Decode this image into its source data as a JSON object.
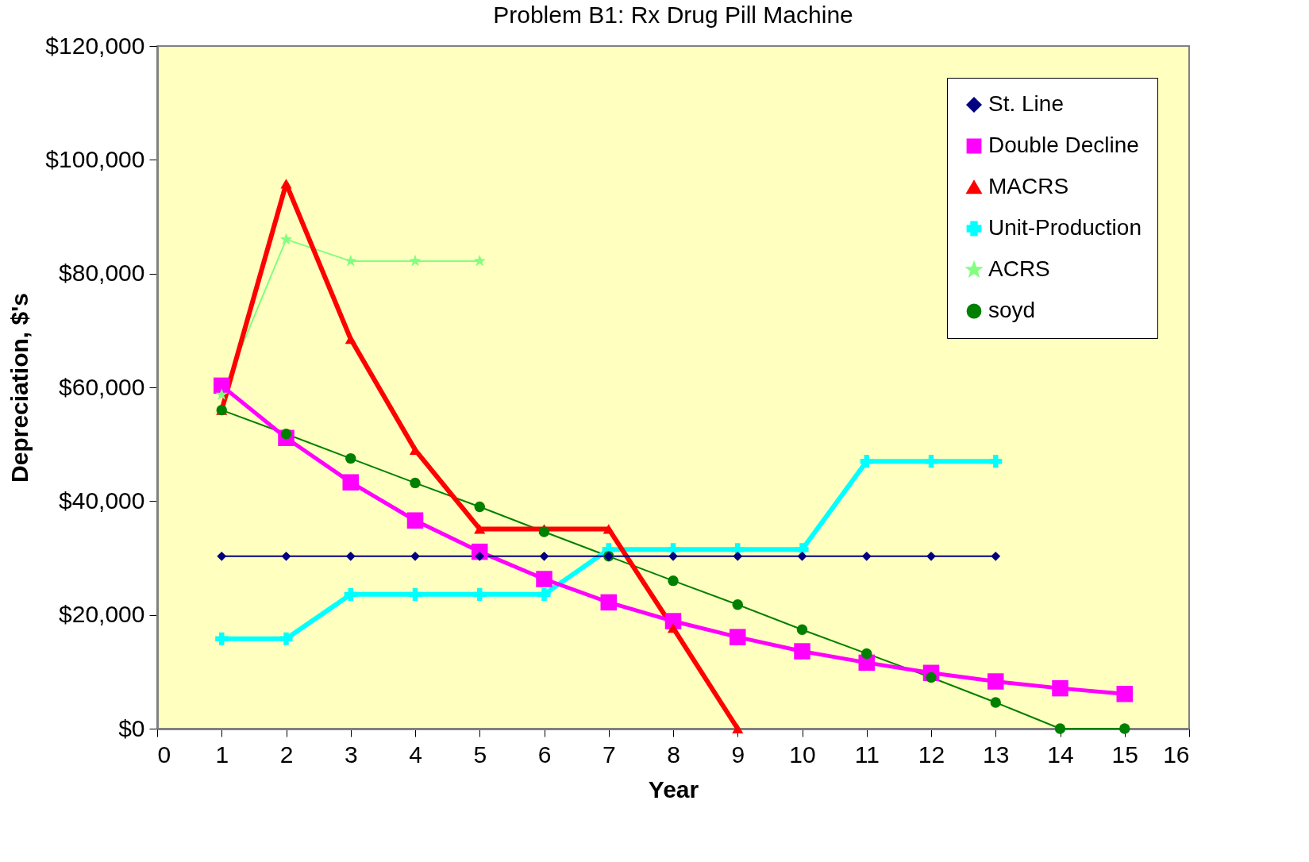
{
  "chart_data": {
    "type": "line",
    "title": "Problem B1:   Rx Drug Pill Machine",
    "xlabel": "Year",
    "ylabel": "Depreciation,  $'s",
    "x": [
      1,
      2,
      3,
      4,
      5,
      6,
      7,
      8,
      9,
      10,
      11,
      12,
      13,
      14,
      15
    ],
    "xlim": [
      0,
      16
    ],
    "xticks": [
      0,
      1,
      2,
      3,
      4,
      5,
      6,
      7,
      8,
      9,
      10,
      11,
      12,
      13,
      14,
      15,
      16
    ],
    "ylim": [
      0,
      120000
    ],
    "yticks": [
      {
        "value": 0,
        "label": "$0"
      },
      {
        "value": 20000,
        "label": "$20,000"
      },
      {
        "value": 40000,
        "label": "$40,000"
      },
      {
        "value": 60000,
        "label": "$60,000"
      },
      {
        "value": 80000,
        "label": "$80,000"
      },
      {
        "value": 100000,
        "label": "$100,000"
      },
      {
        "value": 120000,
        "label": "$120,000"
      }
    ],
    "grid": false,
    "legend": "top right",
    "series": [
      {
        "name": "St. Line",
        "color": "#000080",
        "marker": "diamond",
        "values": [
          30300,
          30300,
          30300,
          30300,
          30300,
          30300,
          30300,
          30300,
          30300,
          30300,
          30300,
          30300,
          30300,
          null,
          null
        ]
      },
      {
        "name": "Double Decline",
        "color": "#ff00ff",
        "marker": "square",
        "values": [
          60300,
          51100,
          43300,
          36600,
          31100,
          26300,
          22200,
          18900,
          16100,
          13600,
          11600,
          9800,
          8300,
          7100,
          6100
        ]
      },
      {
        "name": "MACRS",
        "color": "#ff0000",
        "marker": "triangle",
        "values": [
          56000,
          95800,
          68500,
          49000,
          35100,
          35100,
          35100,
          17700,
          0,
          null,
          null,
          null,
          null,
          null,
          null
        ]
      },
      {
        "name": "Unit-Production",
        "color": "#00ffff",
        "marker": "cross",
        "values": [
          15800,
          15800,
          23600,
          23600,
          23600,
          23600,
          31500,
          31500,
          31500,
          31500,
          47000,
          47000,
          47000,
          null,
          null
        ]
      },
      {
        "name": "ACRS",
        "color": "#80ff80",
        "marker": "star",
        "values": [
          58700,
          86000,
          82200,
          82200,
          82200,
          null,
          null,
          null,
          null,
          null,
          null,
          null,
          null,
          null,
          null
        ]
      },
      {
        "name": "soyd",
        "color": "#008000",
        "marker": "circle",
        "values": [
          56000,
          51800,
          47500,
          43200,
          39000,
          34600,
          30300,
          26000,
          21800,
          17400,
          13200,
          9000,
          4600,
          0,
          0
        ]
      }
    ]
  }
}
